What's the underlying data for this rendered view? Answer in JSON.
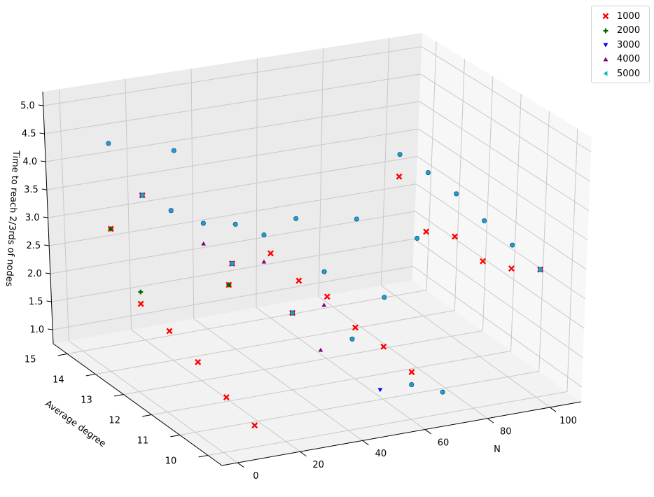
{
  "chart_data": {
    "type": "scatter",
    "projection": "3d",
    "title": "",
    "xlabel": "N",
    "ylabel": "Average degree",
    "zlabel": "Time to reach 2/3rds of nodes",
    "xlim": [
      -5,
      110
    ],
    "ylim": [
      9.5,
      15.5
    ],
    "zlim": [
      0.75,
      5.25
    ],
    "xticks": [
      "0",
      "20",
      "40",
      "60",
      "80",
      "100"
    ],
    "yticks": [
      "10",
      "11",
      "12",
      "13",
      "14",
      "15"
    ],
    "zticks": [
      "1.0",
      "1.5",
      "2.0",
      "2.5",
      "3.0",
      "3.5",
      "4.0",
      "4.5",
      "5.0"
    ],
    "grid": true,
    "legend_position": "top-right",
    "series": [
      {
        "name": "1000",
        "color": "#ff0000",
        "marker": "x",
        "points": [
          [
            10,
            10,
            1.07
          ],
          [
            10,
            11,
            1.2
          ],
          [
            10,
            12,
            1.45
          ],
          [
            10,
            13,
            1.65
          ],
          [
            10,
            14,
            1.8
          ],
          [
            10,
            15,
            2.8
          ],
          [
            20,
            15,
            3.3
          ],
          [
            20,
            12,
            2.6
          ],
          [
            40,
            12,
            2.0
          ],
          [
            30,
            13,
            2.6
          ],
          [
            60,
            10,
            1.5
          ],
          [
            60,
            11,
            1.6
          ],
          [
            60,
            12,
            1.6
          ],
          [
            60,
            13,
            1.8
          ],
          [
            60,
            14,
            1.75
          ],
          [
            60,
            15,
            1.9
          ],
          [
            100,
            10,
            2.9
          ],
          [
            100,
            11,
            2.6
          ],
          [
            100,
            12,
            2.4
          ],
          [
            100,
            13,
            2.5
          ],
          [
            100,
            14,
            2.25
          ],
          [
            100,
            15,
            2.9
          ]
        ]
      },
      {
        "name": "2000",
        "color": "#006400",
        "marker": "+",
        "points": [
          [
            10,
            15,
            2.8
          ],
          [
            20,
            15,
            3.3
          ],
          [
            10,
            14,
            2.0
          ],
          [
            30,
            13,
            2.6
          ],
          [
            20,
            12,
            2.6
          ],
          [
            40,
            12,
            2.0
          ]
        ]
      },
      {
        "name": "3000",
        "color": "#0000ff",
        "marker": "v",
        "points": [
          [
            20,
            15,
            3.3
          ],
          [
            20,
            14,
            3.3
          ],
          [
            30,
            13,
            2.6
          ],
          [
            40,
            12,
            2.0
          ],
          [
            50,
            11,
            1.8
          ],
          [
            50,
            10,
            1.3
          ],
          [
            100,
            10,
            2.9
          ]
        ]
      },
      {
        "name": "4000",
        "color": "#800080",
        "marker": "^",
        "points": [
          [
            20,
            15,
            3.3
          ],
          [
            20,
            14,
            3.3
          ],
          [
            30,
            14,
            2.65
          ],
          [
            40,
            13,
            2.55
          ],
          [
            50,
            12,
            2.05
          ],
          [
            40,
            11,
            1.7
          ]
        ]
      },
      {
        "name": "5000",
        "color": "#00bfbf",
        "marker": "<",
        "points": [
          [
            10,
            15,
            4.3
          ],
          [
            20,
            15,
            3.3
          ],
          [
            30,
            15,
            4.0
          ],
          [
            20,
            14,
            3.3
          ],
          [
            30,
            14,
            3.0
          ],
          [
            40,
            14,
            2.9
          ],
          [
            30,
            13,
            2.6
          ],
          [
            40,
            13,
            3.0
          ],
          [
            50,
            13,
            3.2
          ],
          [
            40,
            12,
            2.0
          ],
          [
            50,
            12,
            2.6
          ],
          [
            60,
            12,
            3.4
          ],
          [
            50,
            11,
            1.8
          ],
          [
            60,
            11,
            2.4
          ],
          [
            70,
            11,
            3.3
          ],
          [
            70,
            10,
            1.1
          ],
          [
            60,
            10,
            1.3
          ],
          [
            100,
            15,
            3.3
          ],
          [
            100,
            14,
            3.3
          ],
          [
            100,
            13,
            3.25
          ],
          [
            100,
            12,
            3.1
          ],
          [
            100,
            11,
            3.0
          ],
          [
            100,
            10,
            2.9
          ]
        ]
      }
    ]
  }
}
